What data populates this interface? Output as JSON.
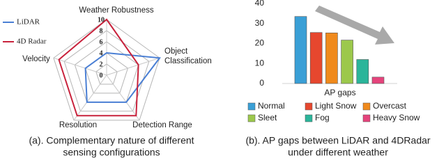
{
  "chart_data": [
    {
      "type": "radar",
      "categories": [
        "Weather Robustness",
        "Object Classification",
        "Detection Range",
        "Resolution",
        "Velocity"
      ],
      "rlim": [
        0,
        10
      ],
      "rticks": [
        0,
        2,
        4,
        6,
        8,
        10
      ],
      "series": [
        {
          "name": "LiDAR",
          "color": "#4a7fd4",
          "values": [
            4,
            10,
            6,
            6,
            4
          ]
        },
        {
          "name": "4D Radar",
          "color": "#c8223c",
          "values": [
            10,
            6,
            9,
            9,
            9
          ]
        }
      ],
      "caption": [
        "(a). Complementary nature of different",
        "sensing configurations"
      ]
    },
    {
      "type": "bar",
      "categories": [
        "Normal",
        "Light Snow",
        "Overcast",
        "Sleet",
        "Fog",
        "Heavy Snow"
      ],
      "values": [
        33.5,
        25.5,
        25.3,
        21.7,
        12,
        3.2
      ],
      "colors": [
        "#3a9fd6",
        "#e6472e",
        "#f08a1c",
        "#9cc84c",
        "#2bb59a",
        "#e5447c"
      ],
      "xlabel": "AP gaps",
      "ylim": [
        0,
        40
      ],
      "yticks": [
        0,
        10,
        20,
        30,
        40
      ],
      "caption": [
        "(b). AP gaps between LiDAR and 4DRadar",
        "under different weather"
      ]
    }
  ]
}
